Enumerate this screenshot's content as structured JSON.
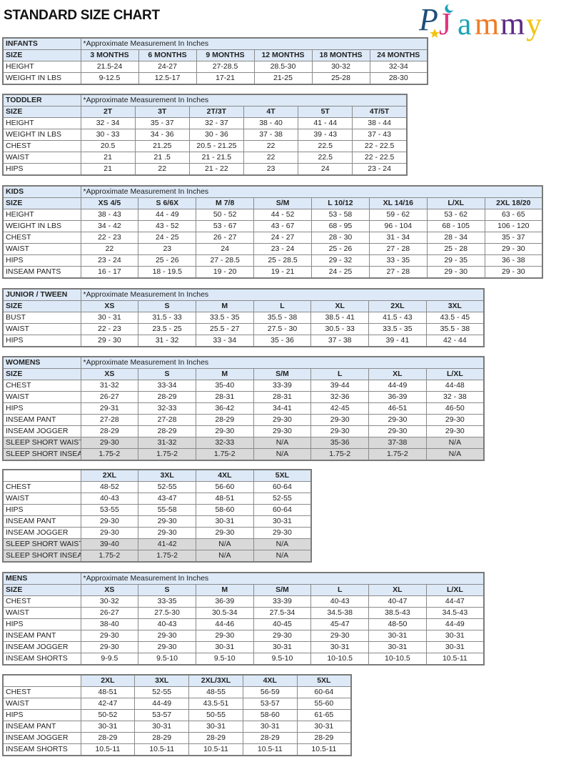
{
  "title": "STANDARD SIZE CHART",
  "logo": {
    "text": "PJammy",
    "colors": [
      "#1f4e79",
      "#e0337f",
      "#1aa3b5",
      "#f07a24",
      "#5b2a86",
      "#f2c40c"
    ]
  },
  "note": "*Approximate Measurement In Inches",
  "tables": [
    {
      "id": "infants",
      "label": "INFANTS",
      "sizes": [
        "3 MONTHS",
        "6 MONTHS",
        "9 MONTHS",
        "12 MONTHS",
        "18 MONTHS",
        "24 MONTHS"
      ],
      "rows": [
        {
          "label": "HEIGHT",
          "values": [
            "21.5-24",
            "24-27",
            "27-28.5",
            "28.5-30",
            "30-32",
            "32-34"
          ]
        },
        {
          "label": "WEIGHT IN LBS",
          "values": [
            "9-12.5",
            "12.5-17",
            "17-21",
            "21-25",
            "25-28",
            "28-30"
          ]
        }
      ]
    },
    {
      "id": "toddler",
      "label": "TODDLER",
      "sizes": [
        "2T",
        "3T",
        "2T/3T",
        "4T",
        "5T",
        "4T/5T"
      ],
      "rows": [
        {
          "label": "HEIGHT",
          "values": [
            "32 - 34",
            "35 - 37",
            "32 - 37",
            "38 - 40",
            "41 - 44",
            "38 - 44"
          ]
        },
        {
          "label": "WEIGHT IN LBS",
          "values": [
            "30 - 33",
            "34 - 36",
            "30 - 36",
            "37 - 38",
            "39 - 43",
            "37 - 43"
          ]
        },
        {
          "label": "CHEST",
          "values": [
            "20.5",
            "21.25",
            "20.5 - 21.25",
            "22",
            "22.5",
            "22 - 22.5"
          ]
        },
        {
          "label": "WAIST",
          "values": [
            "21",
            "21 .5",
            "21 - 21.5",
            "22",
            "22.5",
            "22 - 22.5"
          ]
        },
        {
          "label": "HIPS",
          "values": [
            "21",
            "22",
            "21 - 22",
            "23",
            "24",
            "23 - 24"
          ]
        }
      ]
    },
    {
      "id": "kids",
      "label": "KIDS",
      "sizes": [
        "XS 4/5",
        "S 6/6X",
        "M 7/8",
        "S/M",
        "L 10/12",
        "XL 14/16",
        "L/XL",
        "2XL 18/20"
      ],
      "rows": [
        {
          "label": "HEIGHT",
          "values": [
            "38 - 43",
            "44 - 49",
            "50 - 52",
            "44 - 52",
            "53 - 58",
            "59 - 62",
            "53 - 62",
            "63 - 65"
          ]
        },
        {
          "label": "WEIGHT IN LBS",
          "values": [
            "34 - 42",
            "43 - 52",
            "53 - 67",
            "43 - 67",
            "68 - 95",
            "96 - 104",
            "68 - 105",
            "106 - 120"
          ]
        },
        {
          "label": "CHEST",
          "values": [
            "22 - 23",
            "24 - 25",
            "26 - 27",
            "24 - 27",
            "28 - 30",
            "31 - 34",
            "28 - 34",
            "35 - 37"
          ]
        },
        {
          "label": "WAIST",
          "values": [
            "22",
            "23",
            "24",
            "23 - 24",
            "25 - 26",
            "27 - 28",
            "25 - 28",
            "29 - 30"
          ]
        },
        {
          "label": "HIPS",
          "values": [
            "23 - 24",
            "25 - 26",
            "27 - 28.5",
            "25 - 28.5",
            "29 - 32",
            "33 - 35",
            "29 - 35",
            "36 - 38"
          ]
        },
        {
          "label": "INSEAM PANTS",
          "values": [
            "16 - 17",
            "18 - 19.5",
            "19 - 20",
            "19 - 21",
            "24 - 25",
            "27 - 28",
            "29 - 30",
            "29 - 30"
          ]
        }
      ]
    },
    {
      "id": "junior",
      "label": "JUNIOR / TWEEN",
      "sizes": [
        "XS",
        "S",
        "M",
        "L",
        "XL",
        "2XL",
        "3XL"
      ],
      "rows": [
        {
          "label": "BUST",
          "values": [
            "30 - 31",
            "31.5 - 33",
            "33.5 - 35",
            "35.5 - 38",
            "38.5 - 41",
            "41.5 - 43",
            "43.5 - 45"
          ]
        },
        {
          "label": "WAIST",
          "values": [
            "22 - 23",
            "23.5 - 25",
            "25.5 - 27",
            "27.5 - 30",
            "30.5 - 33",
            "33.5 - 35",
            "35.5 - 38"
          ]
        },
        {
          "label": "HIPS",
          "values": [
            "29 - 30",
            "31 - 32",
            "33 - 34",
            "35 - 36",
            "37 - 38",
            "39 - 41",
            "42 - 44"
          ]
        }
      ]
    },
    {
      "id": "womens",
      "label": "WOMENS",
      "sizes": [
        "XS",
        "S",
        "M",
        "S/M",
        "L",
        "XL",
        "L/XL"
      ],
      "rows": [
        {
          "label": "CHEST",
          "values": [
            "31-32",
            "33-34",
            "35-40",
            "33-39",
            "39-44",
            "44-49",
            "44-48"
          ]
        },
        {
          "label": "WAIST",
          "values": [
            "26-27",
            "28-29",
            "28-31",
            "28-31",
            "32-36",
            "36-39",
            "32 - 38"
          ]
        },
        {
          "label": "HIPS",
          "values": [
            "29-31",
            "32-33",
            "36-42",
            "34-41",
            "42-45",
            "46-51",
            "46-50"
          ]
        },
        {
          "label": "INSEAM PANT",
          "values": [
            "27-28",
            "27-28",
            "28-29",
            "29-30",
            "29-30",
            "29-30",
            "29-30"
          ]
        },
        {
          "label": "INSEAM JOGGER",
          "values": [
            "28-29",
            "28-29",
            "29-30",
            "29-30",
            "29-30",
            "29-30",
            "29-30"
          ]
        },
        {
          "label": "SLEEP SHORT WAIST",
          "shaded": true,
          "values": [
            "29-30",
            "31-32",
            "32-33",
            "N/A",
            "35-36",
            "37-38",
            "N/A"
          ]
        },
        {
          "label": "SLEEP SHORT INSEAM",
          "shaded": true,
          "values": [
            "1.75-2",
            "1.75-2",
            "1.75-2",
            "N/A",
            "1.75-2",
            "1.75-2",
            "N/A"
          ]
        }
      ]
    },
    {
      "id": "womens-plus",
      "sizes": [
        "2XL",
        "3XL",
        "4XL",
        "5XL"
      ],
      "rows": [
        {
          "label": "CHEST",
          "values": [
            "48-52",
            "52-55",
            "56-60",
            "60-64"
          ]
        },
        {
          "label": "WAIST",
          "values": [
            "40-43",
            "43-47",
            "48-51",
            "52-55"
          ]
        },
        {
          "label": "HIPS",
          "values": [
            "53-55",
            "55-58",
            "58-60",
            "60-64"
          ]
        },
        {
          "label": "INSEAM PANT",
          "values": [
            "29-30",
            "29-30",
            "30-31",
            "30-31"
          ]
        },
        {
          "label": "INSEAM JOGGER",
          "values": [
            "29-30",
            "29-30",
            "29-30",
            "29-30"
          ]
        },
        {
          "label": "SLEEP SHORT WAIST",
          "shaded": true,
          "values": [
            "39-40",
            "41-42",
            "N/A",
            "N/A"
          ]
        },
        {
          "label": "SLEEP SHORT INSEAM",
          "shaded": true,
          "values": [
            "1.75-2",
            "1.75-2",
            "N/A",
            "N/A"
          ]
        }
      ]
    },
    {
      "id": "mens",
      "label": "MENS",
      "sizes": [
        "XS",
        "S",
        "M",
        "S/M",
        "L",
        "XL",
        "L/XL"
      ],
      "rows": [
        {
          "label": "CHEST",
          "values": [
            "30-32",
            "33-35",
            "36-39",
            "33-39",
            "40-43",
            "40-47",
            "44-47"
          ]
        },
        {
          "label": "WAIST",
          "values": [
            "26-27",
            "27.5-30",
            "30.5-34",
            "27.5-34",
            "34.5-38",
            "38.5-43",
            "34.5-43"
          ]
        },
        {
          "label": "HIPS",
          "values": [
            "38-40",
            "40-43",
            "44-46",
            "40-45",
            "45-47",
            "48-50",
            "44-49"
          ]
        },
        {
          "label": "INSEAM PANT",
          "values": [
            "29-30",
            "29-30",
            "29-30",
            "29-30",
            "29-30",
            "30-31",
            "30-31"
          ]
        },
        {
          "label": "INSEAM JOGGER",
          "values": [
            "29-30",
            "29-30",
            "30-31",
            "30-31",
            "30-31",
            "30-31",
            "30-31"
          ]
        },
        {
          "label": "INSEAM SHORTS",
          "values": [
            "9-9.5",
            "9.5-10",
            "9.5-10",
            "9.5-10",
            "10-10.5",
            "10-10.5",
            "10.5-11"
          ]
        }
      ]
    },
    {
      "id": "mens-plus",
      "sizes": [
        "2XL",
        "3XL",
        "2XL/3XL",
        "4XL",
        "5XL"
      ],
      "rows": [
        {
          "label": "CHEST",
          "values": [
            "48-51",
            "52-55",
            "48-55",
            "56-59",
            "60-64"
          ]
        },
        {
          "label": "WAIST",
          "values": [
            "42-47",
            "44-49",
            "43.5-51",
            "53-57",
            "55-60"
          ]
        },
        {
          "label": "HIPS",
          "values": [
            "50-52",
            "53-57",
            "50-55",
            "58-60",
            "61-65"
          ]
        },
        {
          "label": "INSEAM PANT",
          "values": [
            "30-31",
            "30-31",
            "30-31",
            "30-31",
            "30-31"
          ]
        },
        {
          "label": "INSEAM JOGGER",
          "values": [
            "28-29",
            "28-29",
            "28-29",
            "28-29",
            "28-29"
          ]
        },
        {
          "label": "INSEAM SHORTS",
          "values": [
            "10.5-11",
            "10.5-11",
            "10.5-11",
            "10.5-11",
            "10.5-11"
          ]
        }
      ]
    }
  ],
  "size_label": "SIZE"
}
